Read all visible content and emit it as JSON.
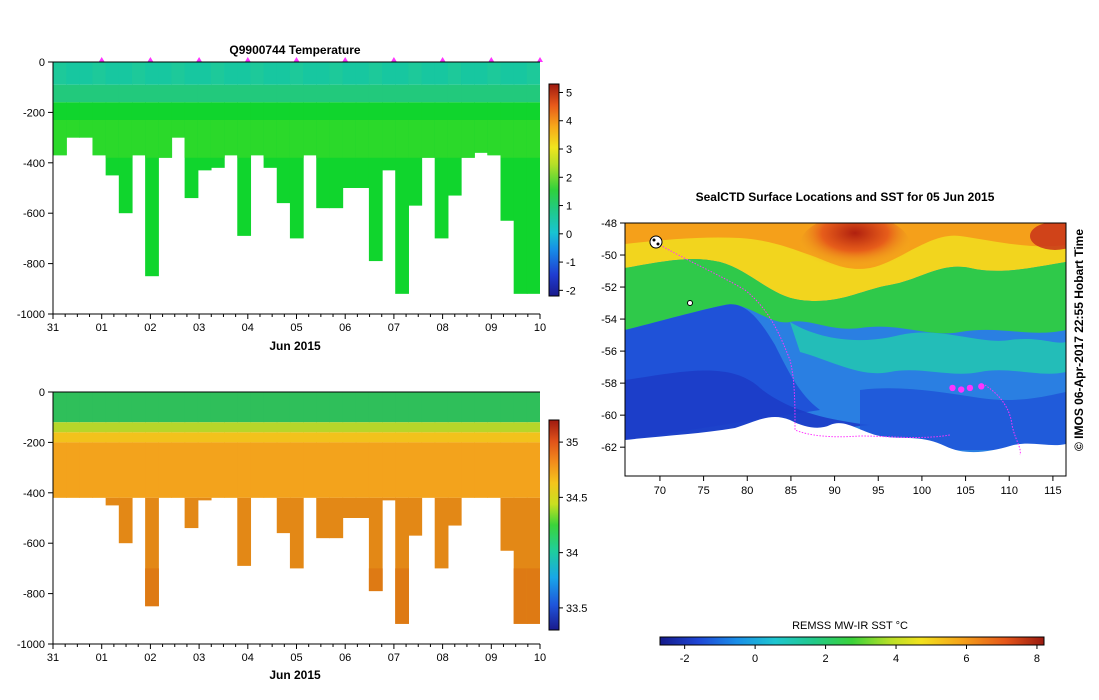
{
  "chart_data": [
    {
      "type": "heatmap",
      "title": "Q9900744  Temperature",
      "xlabel": "Jun 2015",
      "ylabel": "",
      "x_tick_labels": [
        "31",
        "01",
        "02",
        "03",
        "04",
        "05",
        "06",
        "07",
        "08",
        "09",
        "10"
      ],
      "y_ticks": [
        0,
        -200,
        -400,
        -600,
        -800,
        -1000
      ],
      "ylim": [
        -1000,
        0
      ],
      "profile_marker_days": [
        1.0,
        2.0,
        3.0,
        4.0,
        5.0,
        6.0,
        7.0,
        8.0,
        9.0,
        10.0
      ],
      "profile_max_depths": [
        -370,
        -300,
        -300,
        -370,
        -450,
        -600,
        -370,
        -850,
        -380,
        -300,
        -540,
        -430,
        -420,
        -370,
        -690,
        -370,
        -420,
        -560,
        -700,
        -370,
        -580,
        -580,
        -500,
        -500,
        -790,
        -430,
        -920,
        -570,
        -380,
        -700,
        -530,
        -380,
        -360,
        -370,
        -630,
        -920,
        -920
      ],
      "colorbar": {
        "ticks": [
          5,
          4,
          3,
          2,
          1,
          0,
          -1,
          -2
        ],
        "range": [
          -2.2,
          5.3
        ]
      }
    },
    {
      "type": "heatmap",
      "title": "",
      "xlabel": "Jun 2015",
      "ylabel": "",
      "x_tick_labels": [
        "31",
        "01",
        "02",
        "03",
        "04",
        "05",
        "06",
        "07",
        "08",
        "09",
        "10"
      ],
      "y_ticks": [
        0,
        -200,
        -400,
        -600,
        -800,
        -1000
      ],
      "ylim": [
        -1000,
        0
      ],
      "profile_max_depths": [
        -370,
        -300,
        -300,
        -370,
        -450,
        -600,
        -370,
        -850,
        -380,
        -300,
        -540,
        -430,
        -420,
        -370,
        -690,
        -370,
        -420,
        -560,
        -700,
        -370,
        -580,
        -580,
        -500,
        -500,
        -790,
        -430,
        -920,
        -570,
        -380,
        -700,
        -530,
        -380,
        -360,
        -370,
        -630,
        -920,
        -920
      ],
      "colorbar": {
        "ticks": [
          35,
          34.5,
          34,
          33.5
        ],
        "range": [
          33.3,
          35.2
        ]
      }
    },
    {
      "type": "heatmap",
      "title": "SealCTD Surface Locations and SST for 05 Jun 2015",
      "xlabel": "",
      "ylabel": "",
      "x_ticks": [
        70,
        75,
        80,
        85,
        90,
        95,
        100,
        105,
        110,
        115
      ],
      "y_ticks": [
        -48,
        -50,
        -52,
        -54,
        -56,
        -58,
        -60,
        -62
      ],
      "xlim": [
        66,
        116.5
      ],
      "ylim": [
        -63.8,
        -48
      ],
      "colorbar": {
        "label": "REMSS MW-IR SST °C",
        "ticks": [
          -2,
          0,
          2,
          4,
          6,
          8
        ],
        "range": [
          -2.7,
          8.2
        ]
      },
      "credit": "© IMOS 06-Apr-2017 22:55 Hobart Time",
      "track_points": [
        [
          103.5,
          -58.3
        ],
        [
          104.5,
          -58.4
        ],
        [
          105.5,
          -58.3
        ],
        [
          106.8,
          -58.2
        ]
      ]
    }
  ]
}
